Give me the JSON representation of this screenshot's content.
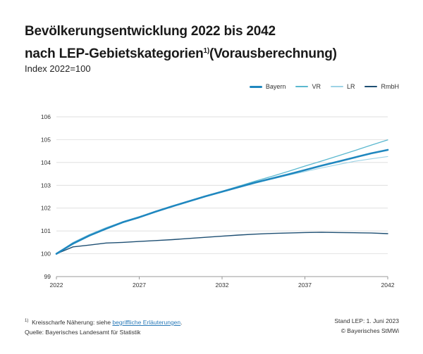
{
  "header": {
    "title_line1": "Bevölkerungsentwicklung 2022 bis 2042",
    "title_line2_prefix": "nach LEP-Gebietskategorien",
    "title_footnote_mark": "1)",
    "title_line2_suffix": "(Vorausberechnung)",
    "subtitle": "Index 2022=100"
  },
  "colors": {
    "Bayern": "#1f87bf",
    "VR": "#5bb8cf",
    "LR": "#9dd3e6",
    "RmbH": "#1e4f73",
    "grid": "#d4d4d4"
  },
  "chart_data": {
    "type": "line",
    "title": "",
    "xlabel": "",
    "ylabel": "",
    "x": [
      2022,
      2023,
      2024,
      2025,
      2026,
      2027,
      2028,
      2029,
      2030,
      2031,
      2032,
      2033,
      2034,
      2035,
      2036,
      2037,
      2038,
      2039,
      2040,
      2041,
      2042
    ],
    "xticks": [
      "2022",
      "2027",
      "2032",
      "2037",
      "2042"
    ],
    "ylim": [
      99,
      106
    ],
    "yticks": [
      "99",
      "100",
      "101",
      "102",
      "103",
      "104",
      "105",
      "106"
    ],
    "grid": "horizontal",
    "legend_position": "top-right",
    "series": [
      {
        "name": "Bayern",
        "values": [
          100.0,
          100.45,
          100.8,
          101.1,
          101.38,
          101.6,
          101.85,
          102.08,
          102.3,
          102.52,
          102.72,
          102.92,
          103.12,
          103.3,
          103.48,
          103.67,
          103.86,
          104.04,
          104.22,
          104.4,
          104.55
        ]
      },
      {
        "name": "VR",
        "values": [
          100.0,
          100.42,
          100.78,
          101.08,
          101.36,
          101.6,
          101.84,
          102.07,
          102.3,
          102.52,
          102.74,
          102.96,
          103.18,
          103.39,
          103.61,
          103.84,
          104.06,
          104.29,
          104.52,
          104.76,
          104.99
        ]
      },
      {
        "name": "LR",
        "values": [
          100.0,
          100.5,
          100.85,
          101.15,
          101.4,
          101.63,
          101.85,
          102.07,
          102.29,
          102.5,
          102.71,
          102.9,
          103.09,
          103.27,
          103.44,
          103.6,
          103.76,
          103.91,
          104.05,
          104.16,
          104.26
        ]
      },
      {
        "name": "RmbH",
        "values": [
          100.0,
          100.3,
          100.38,
          100.47,
          100.5,
          100.54,
          100.58,
          100.62,
          100.67,
          100.72,
          100.77,
          100.82,
          100.86,
          100.89,
          100.91,
          100.93,
          100.94,
          100.93,
          100.92,
          100.91,
          100.88
        ]
      }
    ]
  },
  "footer": {
    "footnote_mark": "1)",
    "footnote_text": "Kreisscharfe Näherung: siehe ",
    "footnote_link": "begriffliche Erläuterungen",
    "footnote_end": ".",
    "source": "Quelle: Bayerisches Landesamt für Statistik",
    "stand": "Stand LEP: 1. Juni 2023",
    "copyright": "© Bayerisches StMWi"
  }
}
